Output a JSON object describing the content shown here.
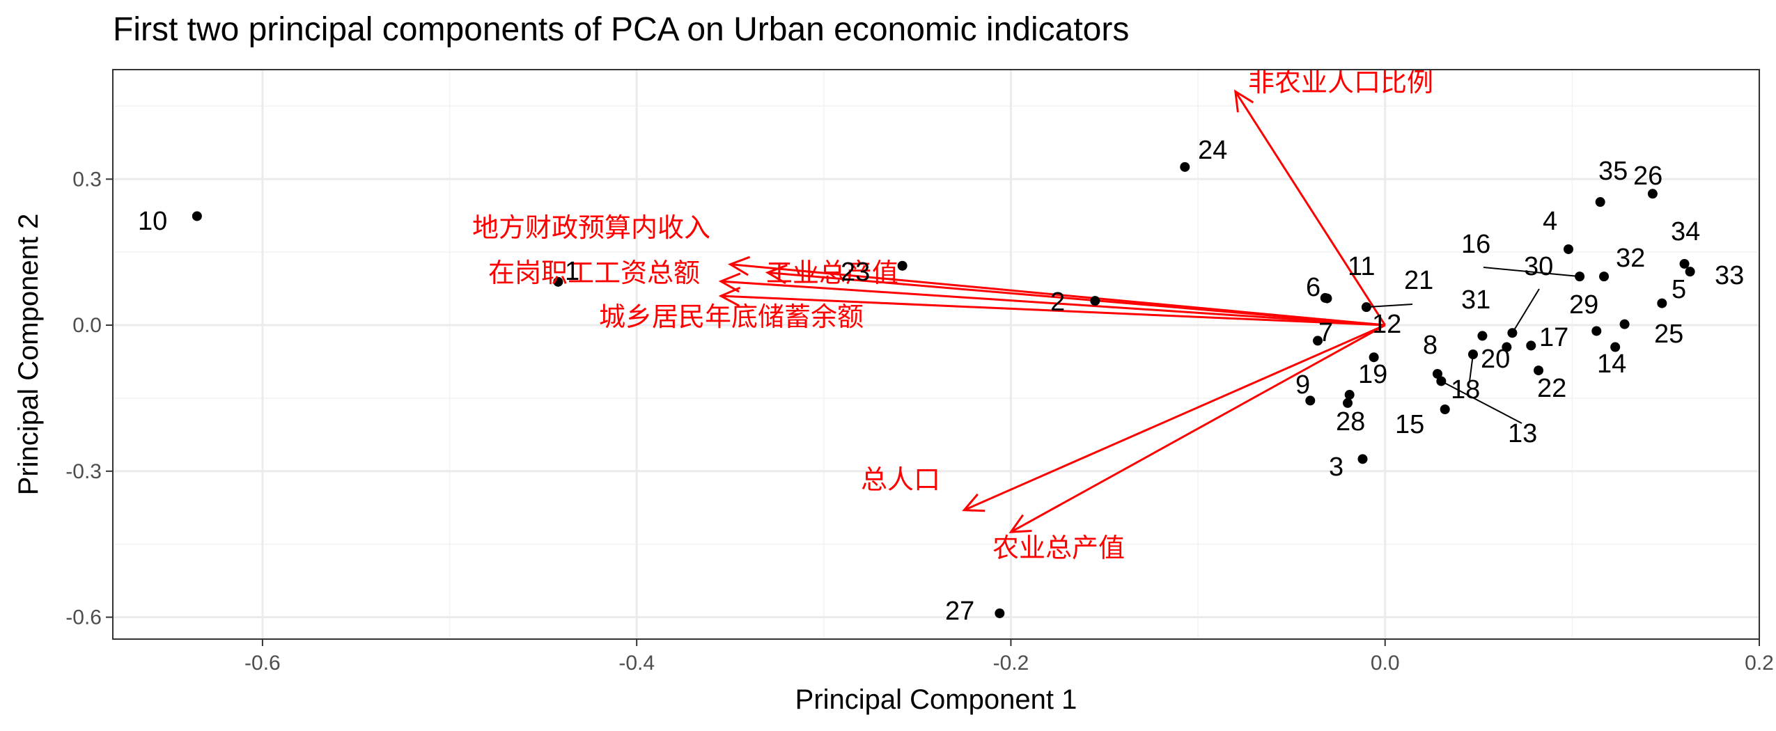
{
  "chart_data": {
    "type": "scatter",
    "title": "First two principal components of PCA on Urban economic indicators",
    "xlabel": "Principal Component 1",
    "ylabel": "Principal Component 2",
    "xlim": [
      -0.68,
      0.2
    ],
    "ylim": [
      -0.645,
      0.525
    ],
    "xticks": [
      -0.6,
      -0.4,
      -0.2,
      0.2
    ],
    "xtick_labels": [
      "-0.6",
      "-0.4",
      "-0.2",
      "0.2"
    ],
    "xzero_label": "0.0",
    "yticks": [
      -0.6,
      -0.3,
      0.0,
      0.3
    ],
    "ytick_labels": [
      "-0.6",
      "-0.3",
      "0.0",
      "0.3"
    ],
    "grid": true,
    "point_color": "#000000",
    "arrow_color": "#ff0000",
    "points": [
      {
        "label": "1",
        "x": -0.442,
        "y": 0.089
      },
      {
        "label": "2",
        "x": -0.155,
        "y": 0.05
      },
      {
        "label": "3",
        "x": -0.012,
        "y": -0.275
      },
      {
        "label": "4",
        "x": 0.098,
        "y": 0.156
      },
      {
        "label": "5",
        "x": 0.148,
        "y": 0.045
      },
      {
        "label": "6",
        "x": -0.031,
        "y": 0.055
      },
      {
        "label": "7",
        "x": -0.036,
        "y": -0.032
      },
      {
        "label": "8",
        "x": 0.028,
        "y": -0.1
      },
      {
        "label": "9",
        "x": -0.04,
        "y": -0.155
      },
      {
        "label": "10",
        "x": -0.635,
        "y": 0.224
      },
      {
        "label": "11",
        "x": -0.032,
        "y": 0.056
      },
      {
        "label": "12",
        "x": -0.006,
        "y": -0.066
      },
      {
        "label": "13",
        "x": 0.03,
        "y": -0.115
      },
      {
        "label": "14",
        "x": 0.123,
        "y": -0.045
      },
      {
        "label": "15",
        "x": 0.032,
        "y": -0.173
      },
      {
        "label": "16",
        "x": 0.104,
        "y": 0.1
      },
      {
        "label": "17",
        "x": 0.078,
        "y": -0.042
      },
      {
        "label": "18",
        "x": 0.047,
        "y": -0.06
      },
      {
        "label": "19",
        "x": -0.019,
        "y": -0.143
      },
      {
        "label": "20",
        "x": 0.065,
        "y": -0.045
      },
      {
        "label": "21",
        "x": -0.01,
        "y": 0.037
      },
      {
        "label": "22",
        "x": 0.082,
        "y": -0.093
      },
      {
        "label": "23",
        "x": -0.258,
        "y": 0.122
      },
      {
        "label": "24",
        "x": -0.107,
        "y": 0.325
      },
      {
        "label": "25",
        "x": 0.128,
        "y": 0.002
      },
      {
        "label": "26",
        "x": 0.143,
        "y": 0.27
      },
      {
        "label": "27",
        "x": -0.206,
        "y": -0.592
      },
      {
        "label": "28",
        "x": -0.02,
        "y": -0.16
      },
      {
        "label": "29",
        "x": 0.113,
        "y": -0.012
      },
      {
        "label": "30",
        "x": 0.068,
        "y": -0.016
      },
      {
        "label": "31",
        "x": 0.052,
        "y": -0.022
      },
      {
        "label": "32",
        "x": 0.117,
        "y": 0.1
      },
      {
        "label": "33",
        "x": 0.163,
        "y": 0.11
      },
      {
        "label": "34",
        "x": 0.16,
        "y": 0.126
      },
      {
        "label": "35",
        "x": 0.115,
        "y": 0.253
      }
    ],
    "variables": [
      {
        "name": "非农业人口比例",
        "x": -0.08,
        "y": 0.48
      },
      {
        "name": "地方财政预算内收入",
        "x": -0.35,
        "y": 0.125
      },
      {
        "name": "工业总产值",
        "x": -0.33,
        "y": 0.108
      },
      {
        "name": "在岗职工工资总额",
        "x": -0.355,
        "y": 0.09
      },
      {
        "name": "城乡居民年底储蓄余额",
        "x": -0.355,
        "y": 0.06
      },
      {
        "name": "总人口",
        "x": -0.225,
        "y": -0.38
      },
      {
        "name": "农业总产值",
        "x": -0.2,
        "y": -0.425
      }
    ]
  }
}
